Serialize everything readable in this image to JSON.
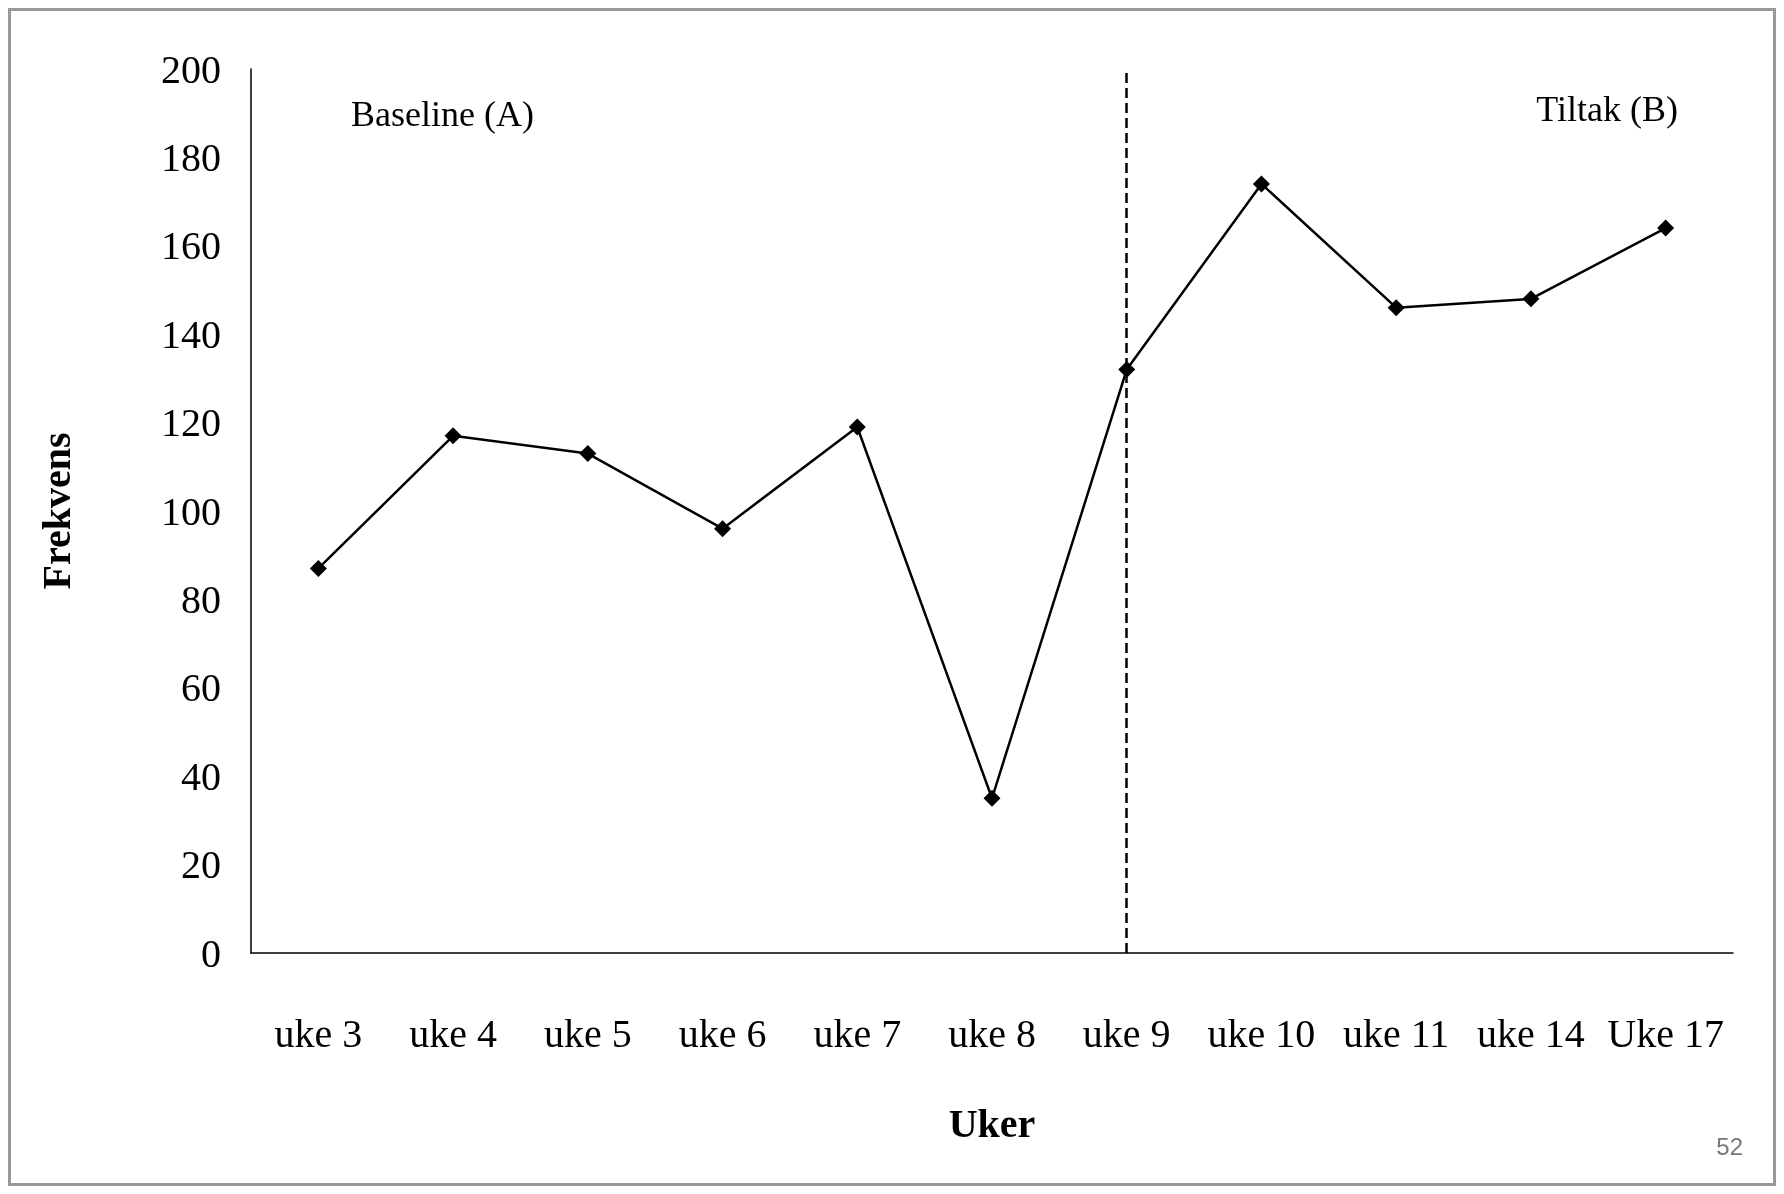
{
  "chart_data": {
    "type": "line",
    "xlabel": "Uker",
    "ylabel": "Frekvens",
    "categories": [
      "uke 3",
      "uke 4",
      "uke 5",
      "uke 6",
      "uke 7",
      "uke 8",
      "uke 9",
      "uke 10",
      "uke 11",
      "uke 14",
      "Uke 17"
    ],
    "series": [
      {
        "color": "#000000",
        "values": [
          87,
          117,
          113,
          96,
          119,
          35,
          132,
          174,
          146,
          148,
          164
        ]
      }
    ],
    "ylim": [
      0,
      200
    ],
    "yticks": [
      0,
      20,
      40,
      60,
      80,
      100,
      120,
      140,
      160,
      180,
      200
    ],
    "ref_lines": [
      {
        "axis": "x",
        "value": "uke 9",
        "color": "#000000",
        "line_style": "dashed"
      }
    ],
    "annotations": [
      "Baseline (A)",
      "Tiltak (B)",
      "52"
    ],
    "grid": false,
    "marker": "diamond",
    "line_style": "solid"
  }
}
